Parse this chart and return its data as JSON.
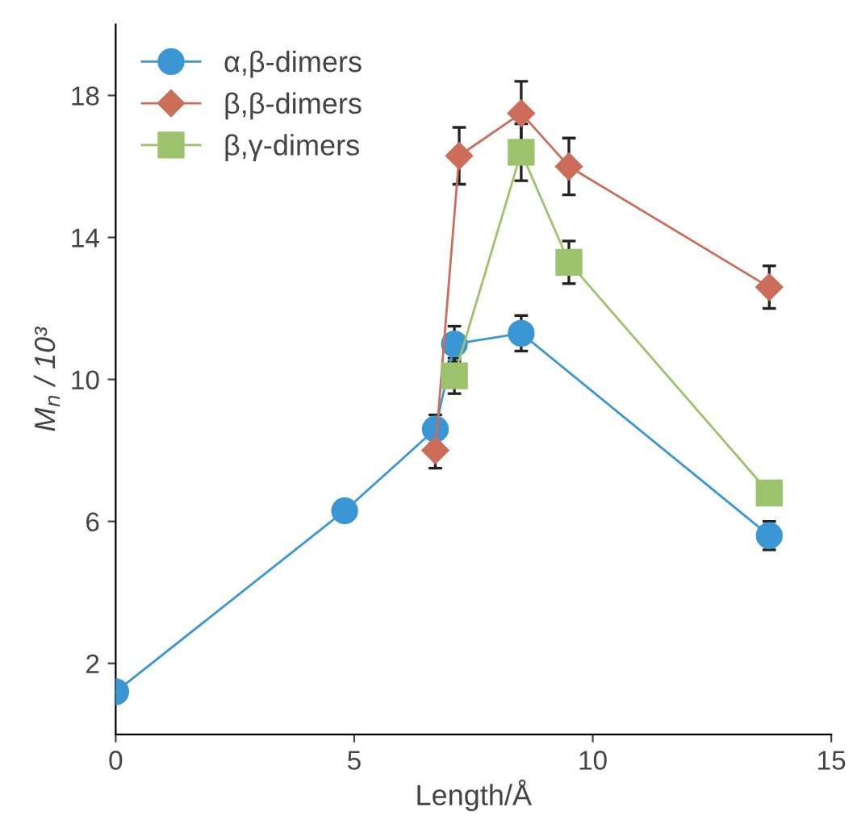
{
  "chart_data": {
    "type": "line",
    "xlabel": "Length/Å",
    "ylabel": "M$_{n}$ / 10³",
    "xlim": [
      0,
      15
    ],
    "ylim": [
      0,
      20
    ],
    "xticks": [
      0,
      5,
      10,
      15
    ],
    "yticks": [
      2,
      6,
      10,
      14,
      18
    ],
    "grid": false,
    "legend": "top left",
    "series": [
      {
        "name": "α,β-dimers",
        "color": "#3a97d4",
        "marker": "circle",
        "x": [
          0,
          4.8,
          6.7,
          7.1,
          8.5,
          13.7
        ],
        "values": [
          1.2,
          6.3,
          8.6,
          11.0,
          11.3,
          5.6
        ],
        "errors": [
          null,
          null,
          0.4,
          0.5,
          0.5,
          0.4
        ]
      },
      {
        "name": "β,β-dimers",
        "color": "#cc6d5a",
        "marker": "diamond",
        "x": [
          6.7,
          7.2,
          8.5,
          9.5,
          13.7
        ],
        "values": [
          8.0,
          16.3,
          17.5,
          16.0,
          12.6
        ],
        "errors": [
          0.5,
          0.8,
          0.9,
          0.8,
          0.6
        ]
      },
      {
        "name": "β,γ-dimers",
        "color": "#9dc26e",
        "marker": "square",
        "x": [
          7.1,
          8.5,
          9.5,
          13.7
        ],
        "values": [
          10.1,
          16.4,
          13.3,
          6.8
        ],
        "errors": [
          0.5,
          0.8,
          0.6,
          null
        ]
      }
    ]
  }
}
